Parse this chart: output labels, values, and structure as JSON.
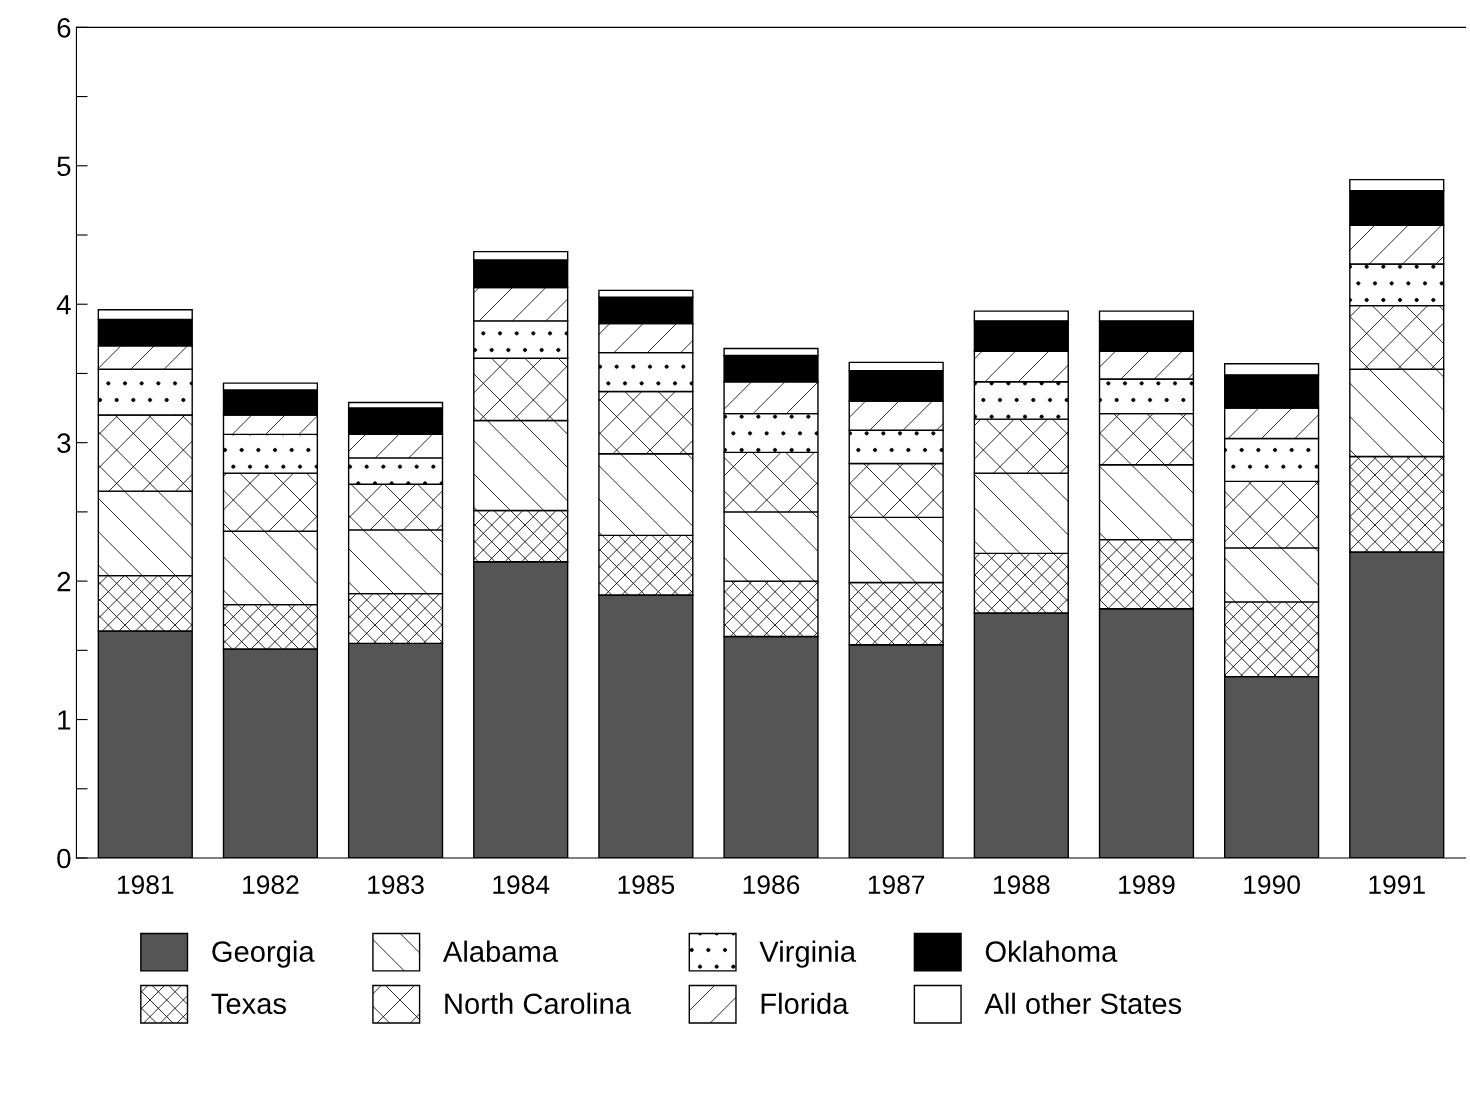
{
  "chart_data": {
    "type": "bar",
    "stacked": true,
    "categories": [
      "1981",
      "1982",
      "1983",
      "1984",
      "1985",
      "1986",
      "1987",
      "1988",
      "1989",
      "1990",
      "1991"
    ],
    "series": [
      {
        "name": "Georgia",
        "color": "#555555",
        "values": [
          1.64,
          1.51,
          1.55,
          2.14,
          1.9,
          1.6,
          1.54,
          1.77,
          1.8,
          1.31,
          2.21
        ]
      },
      {
        "name": "Texas",
        "color": "#ffffff",
        "values": [
          0.4,
          0.32,
          0.36,
          0.37,
          0.43,
          0.4,
          0.45,
          0.43,
          0.5,
          0.54,
          0.69
        ]
      },
      {
        "name": "Alabama",
        "color": "#ffffff",
        "values": [
          0.61,
          0.53,
          0.46,
          0.65,
          0.59,
          0.5,
          0.47,
          0.58,
          0.54,
          0.39,
          0.63
        ]
      },
      {
        "name": "North Carolina",
        "color": "#ffffff",
        "values": [
          0.55,
          0.42,
          0.33,
          0.45,
          0.45,
          0.43,
          0.39,
          0.39,
          0.37,
          0.48,
          0.46
        ]
      },
      {
        "name": "Virginia",
        "color": "#ffffff",
        "values": [
          0.33,
          0.28,
          0.19,
          0.27,
          0.28,
          0.28,
          0.24,
          0.27,
          0.25,
          0.31,
          0.3
        ]
      },
      {
        "name": "Florida",
        "color": "#ffffff",
        "values": [
          0.17,
          0.14,
          0.17,
          0.24,
          0.21,
          0.23,
          0.21,
          0.22,
          0.2,
          0.22,
          0.28
        ]
      },
      {
        "name": "Oklahoma",
        "color": "#000000",
        "values": [
          0.19,
          0.18,
          0.19,
          0.2,
          0.19,
          0.19,
          0.22,
          0.22,
          0.22,
          0.24,
          0.25
        ]
      },
      {
        "name": "All other States",
        "color": "#ffffff",
        "values": [
          0.07,
          0.05,
          0.04,
          0.06,
          0.05,
          0.05,
          0.06,
          0.07,
          0.07,
          0.08,
          0.08
        ]
      }
    ],
    "ylim": [
      0,
      6
    ],
    "yticks": [
      0,
      {
        "value": 0.5,
        "label": null
      },
      1,
      {
        "value": 1.5,
        "label": null
      },
      2,
      {
        "value": 2.5,
        "label": null
      },
      3,
      {
        "value": 3.5,
        "label": null
      },
      4,
      {
        "value": 4.5,
        "label": null
      },
      5,
      {
        "value": 5.5,
        "label": null
      },
      6
    ],
    "grid": false,
    "legend": "bottom"
  }
}
